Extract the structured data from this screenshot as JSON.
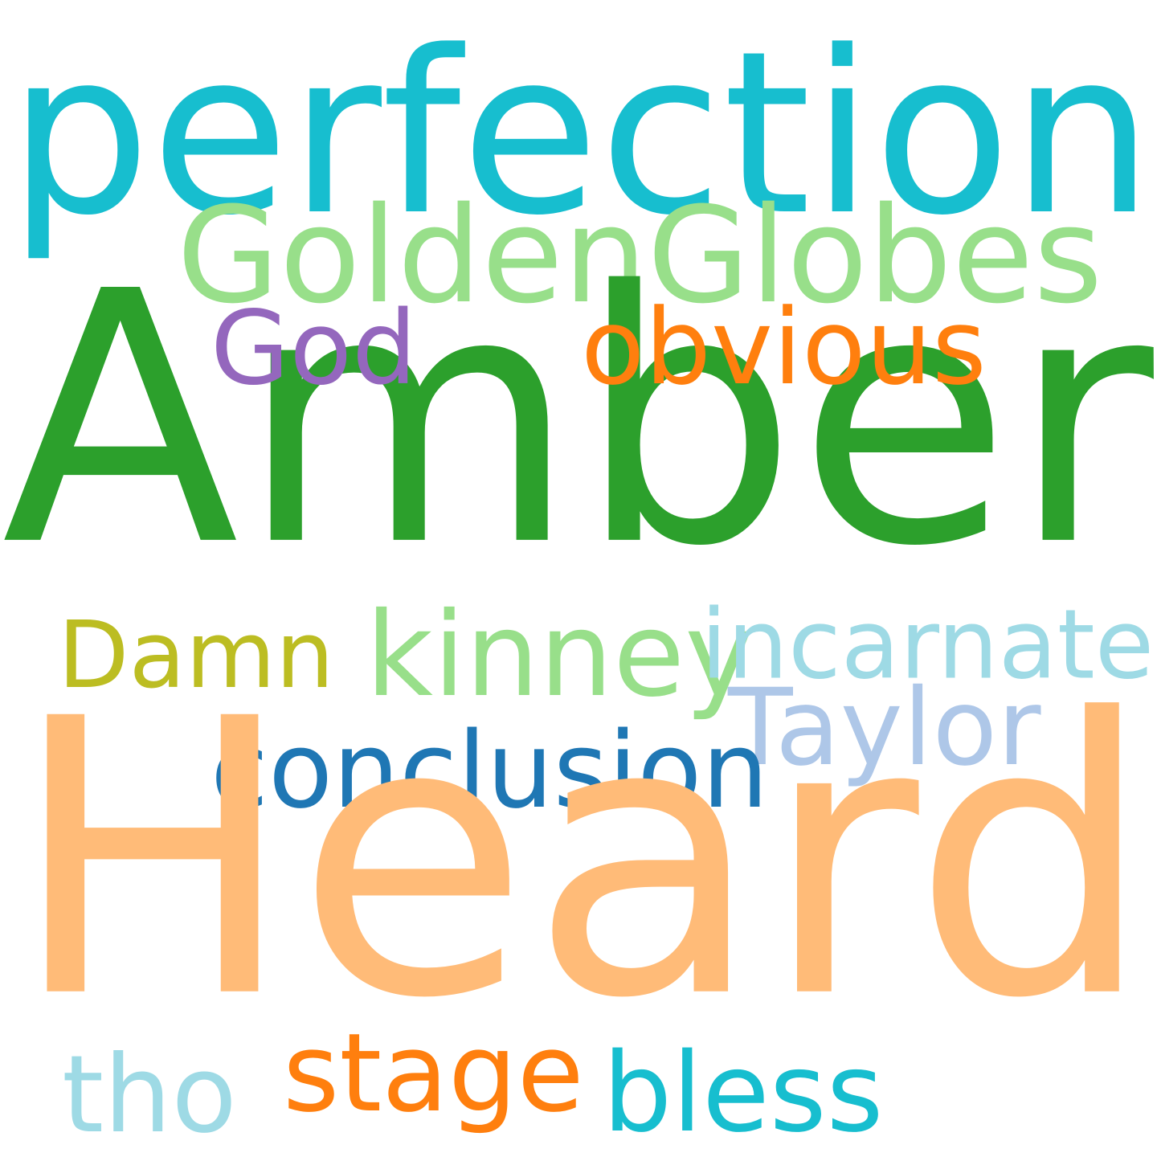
{
  "words": [
    {
      "id": "perfection",
      "text": "perfection",
      "color": "#17becf"
    },
    {
      "id": "goldenglobes",
      "text": "GoldenGlobes",
      "color": "#98df8a"
    },
    {
      "id": "amber",
      "text": "Amber",
      "color": "#2ca02c"
    },
    {
      "id": "god",
      "text": "God",
      "color": "#9467bd"
    },
    {
      "id": "obvious",
      "text": "obvious",
      "color": "#ff7f0e"
    },
    {
      "id": "kinney",
      "text": "kinney",
      "color": "#98df8a"
    },
    {
      "id": "incarnate",
      "text": "incarnate",
      "color": "#9edae5"
    },
    {
      "id": "damn",
      "text": "Damn",
      "color": "#bcbd22"
    },
    {
      "id": "taylor",
      "text": "Taylor",
      "color": "#aec7e8"
    },
    {
      "id": "conclusion",
      "text": "conclusion",
      "color": "#1f77b4"
    },
    {
      "id": "heard",
      "text": "Heard",
      "color": "#ffbb78"
    },
    {
      "id": "stage",
      "text": "stage",
      "color": "#ff7f0e"
    },
    {
      "id": "bless",
      "text": "bless",
      "color": "#17becf"
    },
    {
      "id": "tho",
      "text": "tho",
      "color": "#9edae5"
    }
  ]
}
